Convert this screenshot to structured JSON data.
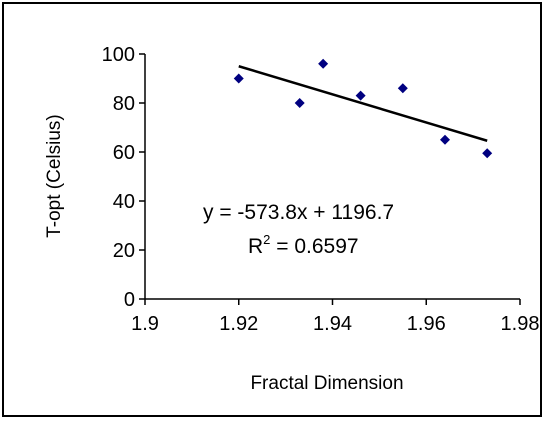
{
  "chart_data": {
    "type": "scatter",
    "title": "",
    "xlabel": "Fractal Dimension",
    "ylabel": "T-opt (Celsius)",
    "xlim": [
      1.9,
      1.98
    ],
    "ylim": [
      0,
      100
    ],
    "x_ticks": [
      "1.9",
      "1.92",
      "1.94",
      "1.96",
      "1.98"
    ],
    "y_ticks": [
      "0",
      "20",
      "40",
      "60",
      "80",
      "100"
    ],
    "grid": false,
    "legend": "none",
    "series": [
      {
        "marker": "diamond",
        "color": "#000080",
        "points": [
          {
            "x": 1.92,
            "y": 90
          },
          {
            "x": 1.933,
            "y": 80
          },
          {
            "x": 1.938,
            "y": 96
          },
          {
            "x": 1.946,
            "y": 83
          },
          {
            "x": 1.955,
            "y": 86
          },
          {
            "x": 1.964,
            "y": 65
          },
          {
            "x": 1.973,
            "y": 59.5
          }
        ]
      }
    ],
    "trendline": {
      "type": "linear",
      "slope": -573.8,
      "intercept": 1196.7,
      "x_range": [
        1.92,
        1.973
      ],
      "color": "#000000"
    },
    "annotations": {
      "equation": "y = -573.8x + 1196.7",
      "r2_prefix": "R",
      "r2_sup": "2",
      "r2_suffix": " = 0.6597"
    }
  }
}
